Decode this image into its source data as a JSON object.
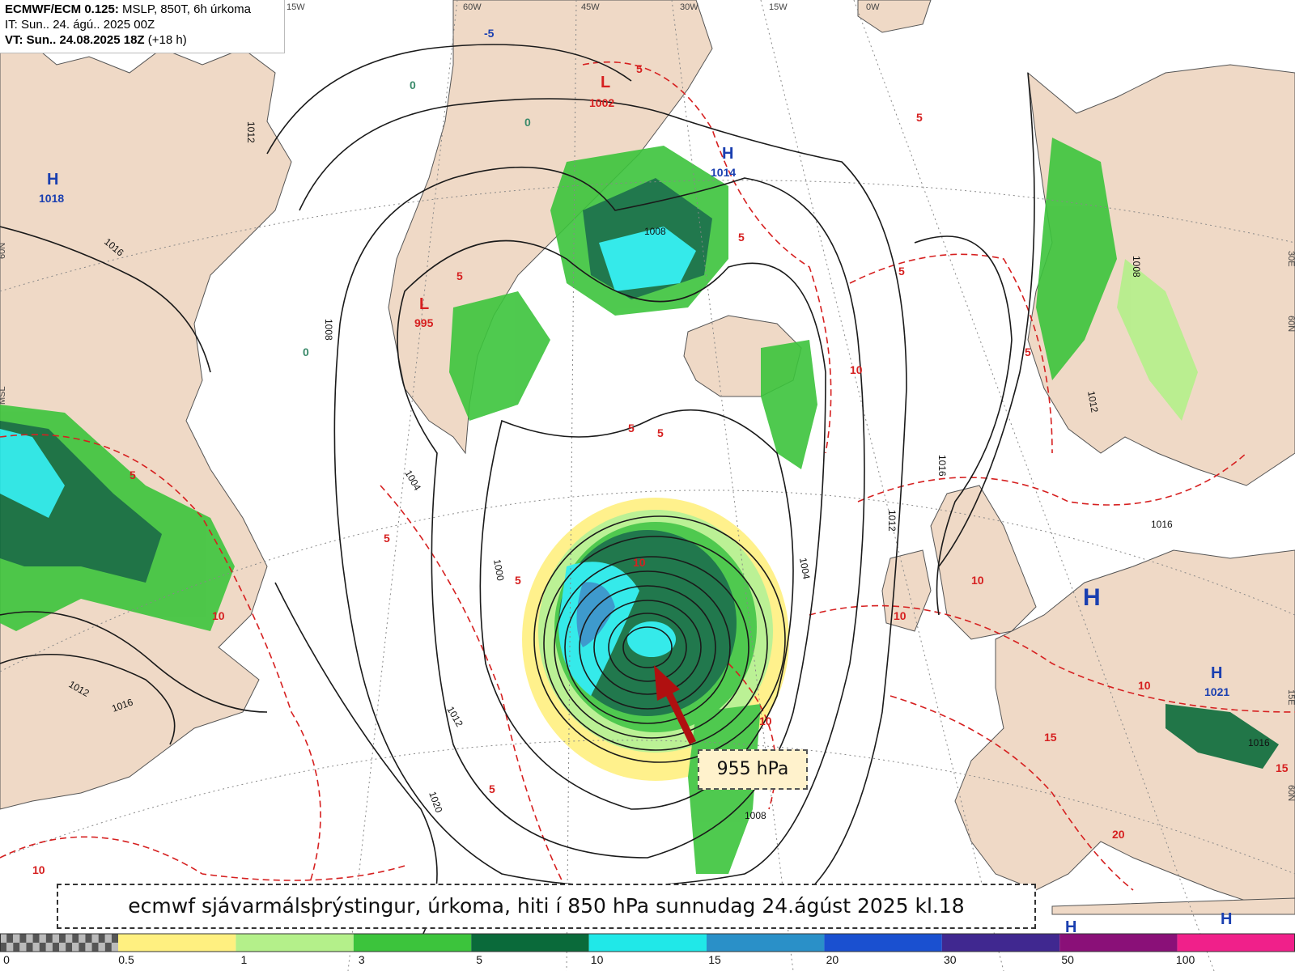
{
  "header": {
    "line1_bold": "ECMWF/ECM 0.125:",
    "line1_rest": " MSLP, 850T, 6h úrkoma",
    "line2": "IT: Sun.. 24. ágú.. 2025 00Z",
    "line3_bold": "VT: Sun.. 24.08.2025 18Z",
    "line3_rest": " (+18 h)"
  },
  "caption": "ecmwf sjávarmálsþrýstingur, úrkoma, hiti í 850 hPa sunnudag 24.ágúst 2025 kl.18",
  "callout": "955 hPa",
  "colors": {
    "ocean": "#ffffff",
    "land": "#efd9c6",
    "isobar": "#1a1a1a",
    "isotherm": "#d62020",
    "arrow": "#b01010",
    "low_label": "#d62020",
    "high_label": "#1a3fb0"
  },
  "pressure_centers": [
    {
      "type": "L",
      "value": "1002"
    },
    {
      "type": "L",
      "value": "995"
    },
    {
      "type": "H",
      "value": "1014"
    },
    {
      "type": "H",
      "value": "1018"
    },
    {
      "type": "H",
      "value": "1021"
    },
    {
      "type": "H",
      "value": ""
    },
    {
      "type": "H",
      "value": ""
    },
    {
      "type": "H",
      "value": ""
    }
  ],
  "isobar_labels": [
    "1012",
    "1016",
    "1008",
    "1004",
    "1000",
    "1012",
    "1020",
    "1008",
    "1004",
    "1012",
    "1016",
    "1012",
    "1016",
    "1008",
    "1016",
    "1012",
    "1016",
    "1008"
  ],
  "isotherm_labels": [
    "5",
    "5",
    "5",
    "5",
    "5",
    "5",
    "5",
    "5",
    "5",
    "5",
    "5",
    "5",
    "10",
    "10",
    "10",
    "10",
    "10",
    "10",
    "10",
    "10",
    "15",
    "15",
    "20",
    "-5",
    "0",
    "0",
    "0"
  ],
  "graticule_labels": [
    "60W",
    "45W",
    "30W",
    "15W",
    "0W",
    "15W",
    "60N",
    "30E",
    "60N",
    "60N",
    "MSL",
    "15E",
    "60N"
  ],
  "colorbar": {
    "ticks": [
      "0",
      "0.5",
      "1",
      "3",
      "5",
      "10",
      "15",
      "20",
      "30",
      "50",
      "100"
    ],
    "colors": [
      "#fff080",
      "#b4f08a",
      "#3cc43c",
      "#0a6a3a",
      "#20e8e8",
      "#2a90c8",
      "#1a50d0",
      "#402890",
      "#8a1078",
      "#f0208a"
    ]
  }
}
